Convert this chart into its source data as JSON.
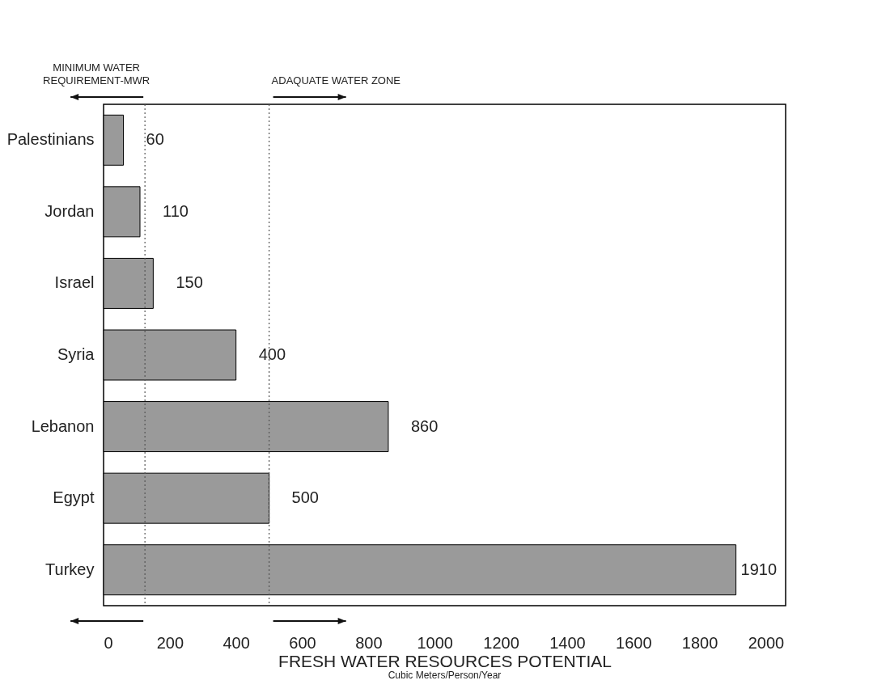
{
  "chart_data": {
    "type": "bar",
    "orientation": "horizontal",
    "categories": [
      "Palestinians",
      "Jordan",
      "Israel",
      "Syria",
      "Lebanon",
      "Egypt",
      "Turkey"
    ],
    "values": [
      60,
      110,
      150,
      400,
      860,
      500,
      1910
    ],
    "color": "#9a9a9a",
    "data_labels": true,
    "xlim": [
      0,
      2060
    ],
    "xticks": [
      0,
      200,
      400,
      600,
      800,
      1000,
      1200,
      1400,
      1600,
      1800,
      2000
    ],
    "xlabel": "FRESH WATER RESOURCES POTENTIAL",
    "annotations": [
      "Cubic Meters/Person/Year"
    ],
    "ref_lines": [
      {
        "axis": "x",
        "value": 125,
        "label": "MINIMUM WATER\nREQUIREMENT-MWR",
        "line_style": "dotted"
      },
      {
        "axis": "x",
        "value": 500,
        "label": "ADAQUATE WATER ZONE",
        "line_style": "dotted"
      }
    ]
  }
}
